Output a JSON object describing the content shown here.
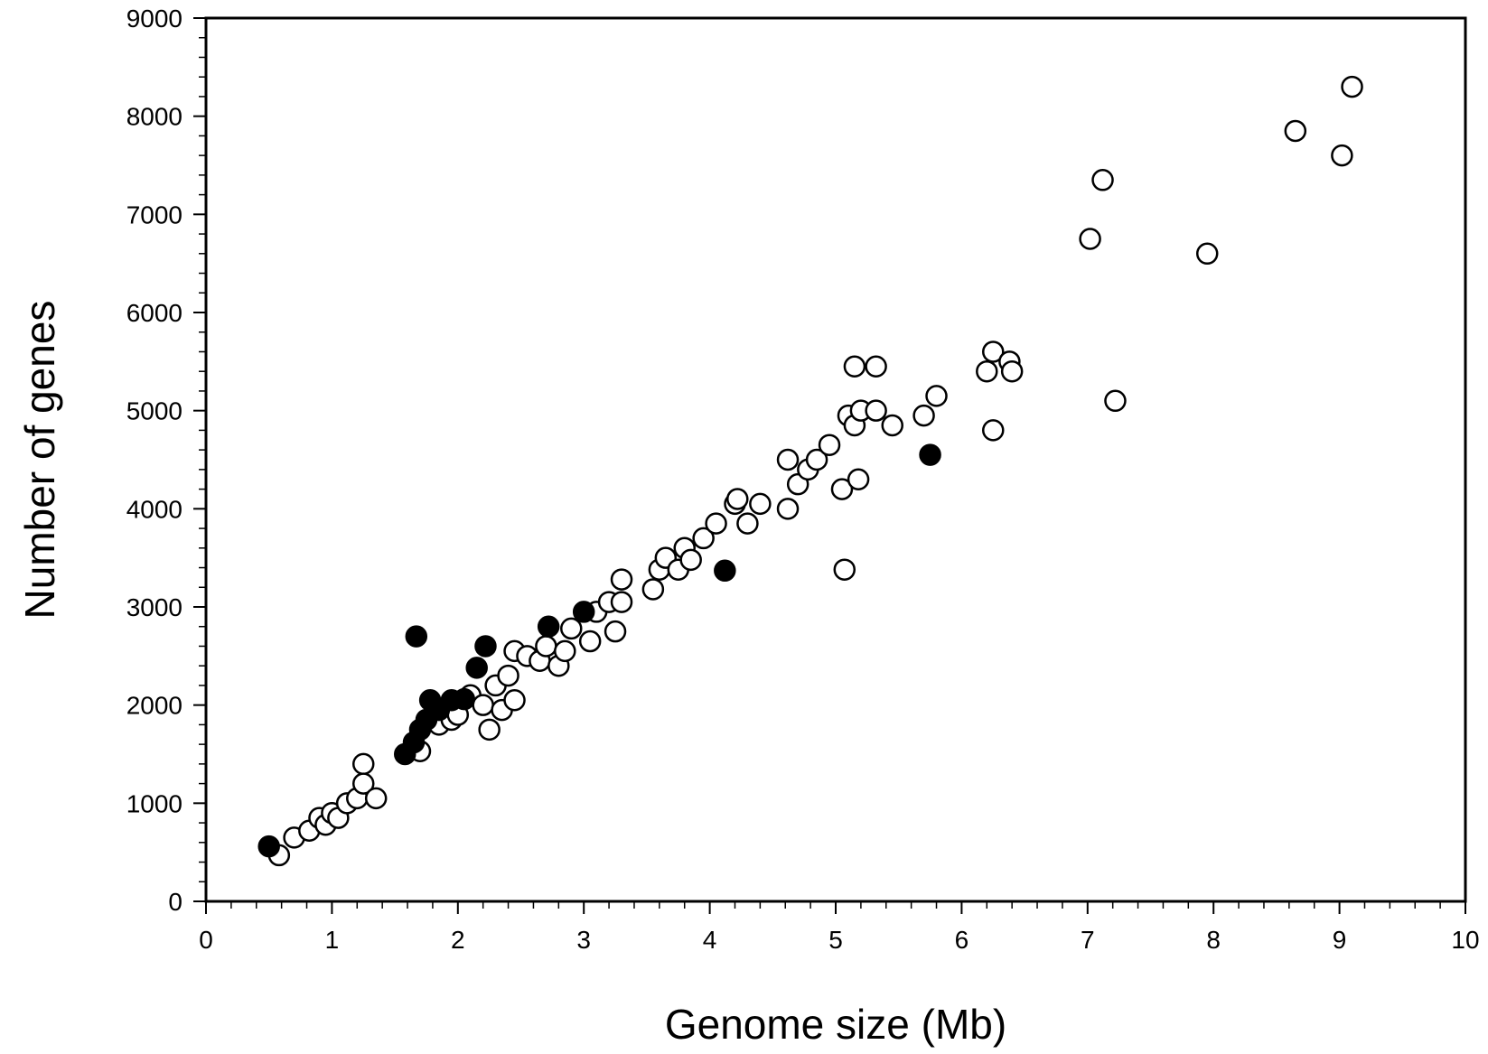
{
  "chart_data": {
    "type": "scatter",
    "xlabel": "Genome size (Mb)",
    "ylabel": "Number of genes",
    "xlim": [
      0,
      10
    ],
    "ylim": [
      0,
      9000
    ],
    "x_ticks": [
      "0",
      "1",
      "2",
      "3",
      "4",
      "5",
      "6",
      "7",
      "8",
      "9",
      "10"
    ],
    "y_ticks": [
      "0",
      "1000",
      "2000",
      "3000",
      "4000",
      "5000",
      "6000",
      "7000",
      "8000",
      "9000"
    ],
    "grid": false,
    "legend": "none",
    "colors": {
      "filled": "#000000",
      "open_fill": "#ffffff",
      "stroke": "#000000"
    },
    "series": [
      {
        "marker": "filled-circle",
        "points": [
          [
            0.5,
            560
          ],
          [
            1.58,
            1500
          ],
          [
            1.65,
            1620
          ],
          [
            1.7,
            1750
          ],
          [
            1.75,
            1850
          ],
          [
            1.78,
            2050
          ],
          [
            1.85,
            1950
          ],
          [
            1.95,
            2050
          ],
          [
            2.05,
            2060
          ],
          [
            2.15,
            2380
          ],
          [
            2.22,
            2600
          ],
          [
            1.67,
            2700
          ],
          [
            2.72,
            2800
          ],
          [
            3.0,
            2950
          ],
          [
            4.12,
            3370
          ],
          [
            5.75,
            4550
          ]
        ]
      },
      {
        "marker": "open-circle",
        "points": [
          [
            0.58,
            470
          ],
          [
            0.7,
            650
          ],
          [
            0.82,
            720
          ],
          [
            0.9,
            850
          ],
          [
            0.95,
            780
          ],
          [
            1.0,
            900
          ],
          [
            1.05,
            850
          ],
          [
            1.12,
            1000
          ],
          [
            1.2,
            1050
          ],
          [
            1.25,
            1400
          ],
          [
            1.25,
            1200
          ],
          [
            1.35,
            1050
          ],
          [
            1.7,
            1530
          ],
          [
            1.85,
            1800
          ],
          [
            1.95,
            1850
          ],
          [
            2.0,
            1900
          ],
          [
            2.1,
            2100
          ],
          [
            2.2,
            2000
          ],
          [
            2.25,
            1750
          ],
          [
            2.3,
            2200
          ],
          [
            2.35,
            1950
          ],
          [
            2.4,
            2300
          ],
          [
            2.45,
            2050
          ],
          [
            2.45,
            2550
          ],
          [
            2.55,
            2500
          ],
          [
            2.65,
            2450
          ],
          [
            2.7,
            2600
          ],
          [
            2.8,
            2400
          ],
          [
            2.85,
            2550
          ],
          [
            2.9,
            2780
          ],
          [
            3.05,
            2650
          ],
          [
            3.1,
            2950
          ],
          [
            3.2,
            3050
          ],
          [
            3.25,
            2750
          ],
          [
            3.3,
            3050
          ],
          [
            3.3,
            3280
          ],
          [
            3.55,
            3180
          ],
          [
            3.6,
            3380
          ],
          [
            3.65,
            3500
          ],
          [
            3.75,
            3380
          ],
          [
            3.8,
            3600
          ],
          [
            3.85,
            3480
          ],
          [
            3.95,
            3700
          ],
          [
            4.05,
            3850
          ],
          [
            4.2,
            4050
          ],
          [
            4.22,
            4100
          ],
          [
            4.3,
            3850
          ],
          [
            4.4,
            4050
          ],
          [
            4.62,
            4000
          ],
          [
            4.62,
            4500
          ],
          [
            4.7,
            4250
          ],
          [
            4.78,
            4400
          ],
          [
            4.85,
            4500
          ],
          [
            4.95,
            4650
          ],
          [
            5.05,
            4200
          ],
          [
            5.07,
            3380
          ],
          [
            5.1,
            4950
          ],
          [
            5.15,
            4850
          ],
          [
            5.18,
            4300
          ],
          [
            5.2,
            5000
          ],
          [
            5.15,
            5450
          ],
          [
            5.32,
            5450
          ],
          [
            5.32,
            5000
          ],
          [
            5.45,
            4850
          ],
          [
            5.7,
            4950
          ],
          [
            5.8,
            5150
          ],
          [
            6.2,
            5400
          ],
          [
            6.25,
            5600
          ],
          [
            6.25,
            4800
          ],
          [
            6.38,
            5500
          ],
          [
            6.4,
            5400
          ],
          [
            7.02,
            6750
          ],
          [
            7.12,
            7350
          ],
          [
            7.22,
            5100
          ],
          [
            7.95,
            6600
          ],
          [
            8.65,
            7850
          ],
          [
            9.02,
            7600
          ],
          [
            9.1,
            8300
          ]
        ]
      }
    ]
  }
}
